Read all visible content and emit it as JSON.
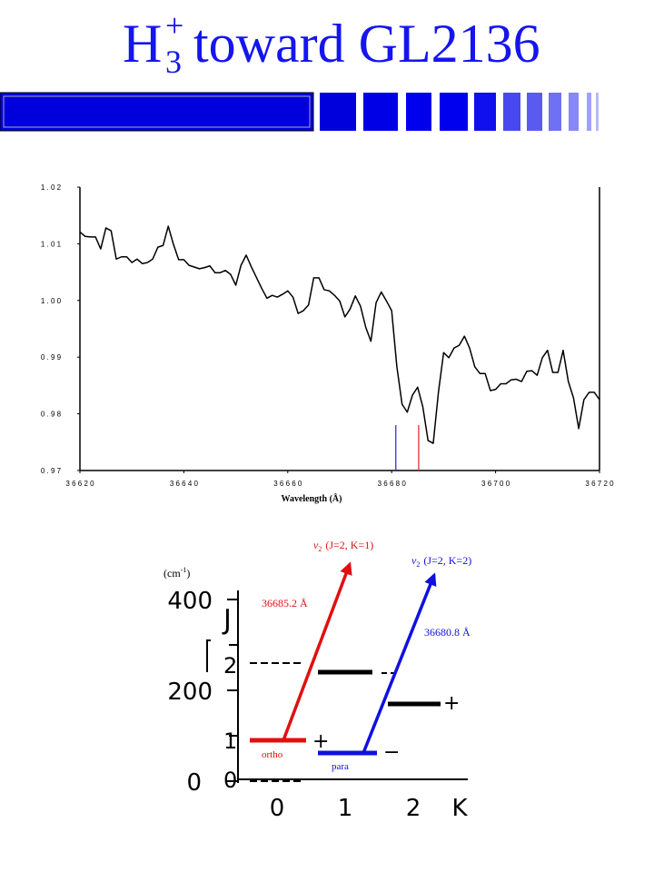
{
  "slide_title": {
    "base": "H",
    "sub": "3",
    "sup": "+",
    "rest": "toward GL2136"
  },
  "chart_data": {
    "type": "line",
    "x": [
      36620,
      36621,
      36622,
      36623,
      36624,
      36625,
      36626,
      36627,
      36628,
      36629,
      36630,
      36631,
      36632,
      36633,
      36634,
      36635,
      36636,
      36637,
      36638,
      36639,
      36640,
      36641,
      36642,
      36643,
      36644,
      36645,
      36646,
      36647,
      36648,
      36649,
      36650,
      36651,
      36652,
      36653,
      36654,
      36655,
      36656,
      36657,
      36658,
      36659,
      36660,
      36661,
      36662,
      36663,
      36664,
      36665,
      36666,
      36667,
      36668,
      36669,
      36670,
      36671,
      36672,
      36673,
      36674,
      36675,
      36676,
      36677,
      36678,
      36679,
      36680,
      36681,
      36682,
      36683,
      36684,
      36685,
      36686,
      36687,
      36688,
      36689,
      36690,
      36691,
      36692,
      36693,
      36694,
      36695,
      36696,
      36697,
      36698,
      36699,
      36700,
      36701,
      36702,
      36703,
      36704,
      36705,
      36706,
      36707,
      36708,
      36709,
      36710,
      36711,
      36712,
      36713,
      36714,
      36715,
      36716,
      36717,
      36718,
      36719,
      36720
    ],
    "values": [
      1.0121,
      1.0113,
      1.0112,
      1.0112,
      1.0091,
      1.0128,
      1.0123,
      1.0073,
      1.0077,
      1.0077,
      1.0067,
      1.0073,
      1.0065,
      1.0067,
      1.0073,
      1.0094,
      1.0097,
      1.0131,
      1.0099,
      1.0072,
      1.0072,
      1.0062,
      1.0059,
      1.0056,
      1.0058,
      1.0061,
      1.0049,
      1.0049,
      1.0053,
      1.0046,
      1.0027,
      1.0062,
      1.008,
      1.0059,
      1.004,
      1.0021,
      1.0004,
      1.0009,
      1.0006,
      1.0011,
      1.0017,
      1.0006,
      0.9977,
      0.9982,
      0.9992,
      1.004,
      1.004,
      1.0019,
      1.0017,
      1.0009,
      0.9999,
      0.9971,
      0.9985,
      1.0008,
      0.999,
      0.9953,
      0.9928,
      0.9996,
      1.0015,
      0.9999,
      0.9982,
      0.9883,
      0.9817,
      0.9803,
      0.9833,
      0.9847,
      0.9812,
      0.9753,
      0.9748,
      0.9838,
      0.9908,
      0.9899,
      0.9916,
      0.9921,
      0.9937,
      0.9916,
      0.9883,
      0.9871,
      0.9871,
      0.9841,
      0.9843,
      0.9853,
      0.9853,
      0.986,
      0.9861,
      0.9857,
      0.9875,
      0.9876,
      0.9868,
      0.9899,
      0.9912,
      0.9873,
      0.9873,
      0.9912,
      0.9857,
      0.9828,
      0.9774,
      0.9825,
      0.9838,
      0.9838,
      0.9825
    ],
    "color": "#000000",
    "xlim": [
      36620,
      36720
    ],
    "ylim": [
      0.97,
      1.02
    ],
    "xticks": [
      {
        "value": 36620,
        "label": "3 6 6 2 0"
      },
      {
        "value": 36640,
        "label": "3 6 6 4 0"
      },
      {
        "value": 36660,
        "label": "3 6 6 6 0"
      },
      {
        "value": 36680,
        "label": "3 6 6 8 0"
      },
      {
        "value": 36700,
        "label": "3 6 7 0 0"
      },
      {
        "value": 36720,
        "label": "3 6 7 2 0"
      }
    ],
    "yticks": [
      {
        "value": 0.97,
        "label": "0 . 9 7"
      },
      {
        "value": 0.98,
        "label": "0 . 9 8"
      },
      {
        "value": 0.99,
        "label": "0 . 9 9"
      },
      {
        "value": 1.0,
        "label": "1 . 0 0"
      },
      {
        "value": 1.01,
        "label": "1 . 0 1"
      },
      {
        "value": 1.02,
        "label": "1 . 0 2"
      }
    ],
    "xlabel": "Wavelength (Å)",
    "markers": [
      {
        "x": 36680.8,
        "color": "#2020d0"
      },
      {
        "x": 36685.2,
        "color": "#e02020"
      }
    ]
  },
  "diagram": {
    "energy_unit": {
      "open": "(cm",
      "sup": "-1",
      "close": ")"
    },
    "energy_ticks": [
      "400",
      "200",
      "0"
    ],
    "j_axis": {
      "label": "J",
      "levels": [
        "2",
        "1",
        "0"
      ]
    },
    "k_axis": {
      "label": "K",
      "values": [
        "0",
        "1",
        "2"
      ]
    },
    "signs": [
      "+",
      "−",
      "+"
    ],
    "ortho": "ortho",
    "para": "para",
    "transitions": [
      {
        "symbol": "ν",
        "sub": "2",
        "label": "(J=2, K=1)",
        "wavelength": "36685.2 Å"
      },
      {
        "symbol": "ν",
        "sub": "2",
        "label": "(J=2, K=2)",
        "wavelength": "36680.8 Å"
      }
    ]
  }
}
